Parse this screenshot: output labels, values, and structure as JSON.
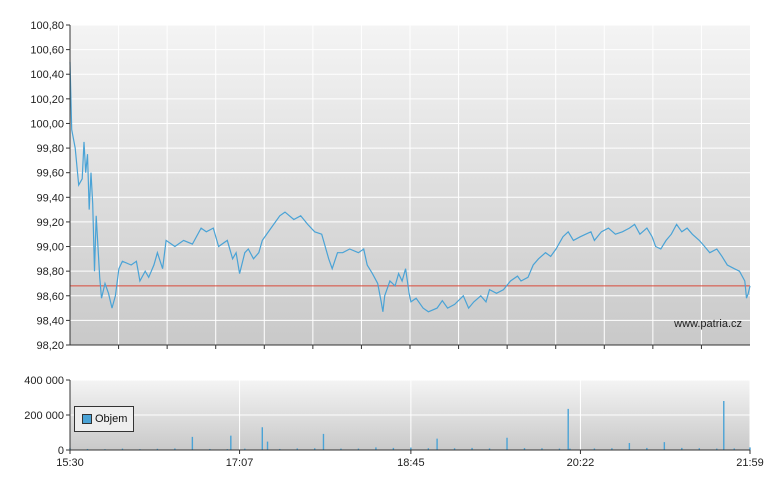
{
  "chart_data": [
    {
      "type": "line",
      "name": "price",
      "x_ticks": [
        "15:30",
        "17:07",
        "18:45",
        "20:22",
        "21:59"
      ],
      "y_ticks": [
        "100,80",
        "100,60",
        "100,40",
        "100,20",
        "100,00",
        "99,80",
        "99,60",
        "99,40",
        "99,20",
        "99,00",
        "98,80",
        "98,60",
        "98,40",
        "98,20"
      ],
      "ylim": [
        98.2,
        100.8
      ],
      "xlim": [
        "15:30",
        "21:59"
      ],
      "reference_line": 98.68,
      "grid": true,
      "watermark": "www.patria.cz",
      "series": [
        {
          "color": "#4aa3d6",
          "points": [
            [
              "15:30",
              100.5
            ],
            [
              "15:31",
              99.95
            ],
            [
              "15:33",
              99.8
            ],
            [
              "15:35",
              99.5
            ],
            [
              "15:37",
              99.55
            ],
            [
              "15:38",
              99.85
            ],
            [
              "15:39",
              99.6
            ],
            [
              "15:40",
              99.75
            ],
            [
              "15:41",
              99.3
            ],
            [
              "15:42",
              99.6
            ],
            [
              "15:43",
              99.35
            ],
            [
              "15:44",
              98.8
            ],
            [
              "15:45",
              99.25
            ],
            [
              "15:47",
              98.75
            ],
            [
              "15:48",
              98.58
            ],
            [
              "15:50",
              98.7
            ],
            [
              "15:52",
              98.62
            ],
            [
              "15:54",
              98.5
            ],
            [
              "15:56",
              98.6
            ],
            [
              "15:58",
              98.82
            ],
            [
              "16:00",
              98.88
            ],
            [
              "16:05",
              98.85
            ],
            [
              "16:08",
              98.88
            ],
            [
              "16:10",
              98.72
            ],
            [
              "16:13",
              98.8
            ],
            [
              "16:15",
              98.75
            ],
            [
              "16:18",
              98.85
            ],
            [
              "16:20",
              98.95
            ],
            [
              "16:23",
              98.82
            ],
            [
              "16:25",
              99.05
            ],
            [
              "16:30",
              99.0
            ],
            [
              "16:35",
              99.05
            ],
            [
              "16:40",
              99.02
            ],
            [
              "16:45",
              99.15
            ],
            [
              "16:48",
              99.12
            ],
            [
              "16:52",
              99.15
            ],
            [
              "16:55",
              99.0
            ],
            [
              "17:00",
              99.05
            ],
            [
              "17:03",
              98.9
            ],
            [
              "17:05",
              98.95
            ],
            [
              "17:07",
              98.78
            ],
            [
              "17:10",
              98.95
            ],
            [
              "17:12",
              98.98
            ],
            [
              "17:15",
              98.9
            ],
            [
              "17:18",
              98.95
            ],
            [
              "17:20",
              99.05
            ],
            [
              "17:25",
              99.15
            ],
            [
              "17:30",
              99.25
            ],
            [
              "17:33",
              99.28
            ],
            [
              "17:38",
              99.22
            ],
            [
              "17:42",
              99.25
            ],
            [
              "17:46",
              99.18
            ],
            [
              "17:50",
              99.12
            ],
            [
              "17:54",
              99.1
            ],
            [
              "17:58",
              98.9
            ],
            [
              "18:00",
              98.82
            ],
            [
              "18:03",
              98.95
            ],
            [
              "18:06",
              98.95
            ],
            [
              "18:10",
              98.98
            ],
            [
              "18:15",
              98.95
            ],
            [
              "18:18",
              98.98
            ],
            [
              "18:20",
              98.85
            ],
            [
              "18:23",
              98.78
            ],
            [
              "18:26",
              98.7
            ],
            [
              "18:28",
              98.55
            ],
            [
              "18:29",
              98.47
            ],
            [
              "18:30",
              98.6
            ],
            [
              "18:33",
              98.72
            ],
            [
              "18:36",
              98.68
            ],
            [
              "18:38",
              98.78
            ],
            [
              "18:40",
              98.72
            ],
            [
              "18:42",
              98.82
            ],
            [
              "18:44",
              98.62
            ],
            [
              "18:45",
              98.55
            ],
            [
              "18:48",
              98.58
            ],
            [
              "18:52",
              98.5
            ],
            [
              "18:55",
              98.47
            ],
            [
              "19:00",
              98.5
            ],
            [
              "19:03",
              98.56
            ],
            [
              "19:06",
              98.5
            ],
            [
              "19:10",
              98.53
            ],
            [
              "19:15",
              98.6
            ],
            [
              "19:18",
              98.5
            ],
            [
              "19:21",
              98.55
            ],
            [
              "19:25",
              98.6
            ],
            [
              "19:28",
              98.55
            ],
            [
              "19:30",
              98.65
            ],
            [
              "19:34",
              98.62
            ],
            [
              "19:38",
              98.65
            ],
            [
              "19:42",
              98.72
            ],
            [
              "19:46",
              98.76
            ],
            [
              "19:48",
              98.72
            ],
            [
              "19:52",
              98.75
            ],
            [
              "19:55",
              98.85
            ],
            [
              "19:58",
              98.9
            ],
            [
              "20:02",
              98.95
            ],
            [
              "20:05",
              98.92
            ],
            [
              "20:08",
              98.98
            ],
            [
              "20:12",
              99.08
            ],
            [
              "20:15",
              99.12
            ],
            [
              "20:18",
              99.05
            ],
            [
              "20:22",
              99.08
            ],
            [
              "20:25",
              99.1
            ],
            [
              "20:28",
              99.12
            ],
            [
              "20:30",
              99.05
            ],
            [
              "20:34",
              99.12
            ],
            [
              "20:38",
              99.15
            ],
            [
              "20:42",
              99.1
            ],
            [
              "20:46",
              99.12
            ],
            [
              "20:50",
              99.15
            ],
            [
              "20:53",
              99.18
            ],
            [
              "20:56",
              99.1
            ],
            [
              "21:00",
              99.15
            ],
            [
              "21:03",
              99.08
            ],
            [
              "21:05",
              99.0
            ],
            [
              "21:08",
              98.98
            ],
            [
              "21:11",
              99.05
            ],
            [
              "21:14",
              99.1
            ],
            [
              "21:17",
              99.18
            ],
            [
              "21:20",
              99.12
            ],
            [
              "21:23",
              99.15
            ],
            [
              "21:26",
              99.1
            ],
            [
              "21:30",
              99.05
            ],
            [
              "21:33",
              99.0
            ],
            [
              "21:36",
              98.95
            ],
            [
              "21:40",
              98.98
            ],
            [
              "21:43",
              98.92
            ],
            [
              "21:46",
              98.85
            ],
            [
              "21:50",
              98.82
            ],
            [
              "21:53",
              98.8
            ],
            [
              "21:56",
              98.72
            ],
            [
              "21:57",
              98.58
            ],
            [
              "21:58",
              98.62
            ],
            [
              "21:59",
              98.68
            ]
          ]
        }
      ]
    },
    {
      "type": "bar",
      "name": "volume",
      "y_ticks": [
        "400 000",
        "200 000",
        "0"
      ],
      "ylim": [
        0,
        400000
      ],
      "legend": {
        "label": "Objem",
        "position": "left",
        "color": "#4aa3d6"
      },
      "series": [
        {
          "name": "Objem",
          "color": "#4aa3d6",
          "bars": [
            [
              "15:30",
              12000
            ],
            [
              "15:40",
              6000
            ],
            [
              "15:50",
              5000
            ],
            [
              "16:00",
              8000
            ],
            [
              "16:10",
              5000
            ],
            [
              "16:20",
              7000
            ],
            [
              "16:30",
              9000
            ],
            [
              "16:40",
              75000
            ],
            [
              "16:50",
              6000
            ],
            [
              "17:00",
              5000
            ],
            [
              "17:02",
              82000
            ],
            [
              "17:10",
              8000
            ],
            [
              "17:20",
              130000
            ],
            [
              "17:23",
              48000
            ],
            [
              "17:30",
              6000
            ],
            [
              "17:40",
              9000
            ],
            [
              "17:50",
              10000
            ],
            [
              "17:55",
              92000
            ],
            [
              "18:05",
              8000
            ],
            [
              "18:15",
              8000
            ],
            [
              "18:25",
              15000
            ],
            [
              "18:35",
              12000
            ],
            [
              "18:45",
              14000
            ],
            [
              "18:55",
              10000
            ],
            [
              "19:00",
              65000
            ],
            [
              "19:10",
              10000
            ],
            [
              "19:20",
              12000
            ],
            [
              "19:30",
              9000
            ],
            [
              "19:40",
              70000
            ],
            [
              "19:50",
              11000
            ],
            [
              "20:00",
              10000
            ],
            [
              "20:10",
              8000
            ],
            [
              "20:15",
              235000
            ],
            [
              "20:16",
              8000
            ],
            [
              "20:30",
              9000
            ],
            [
              "20:40",
              10000
            ],
            [
              "20:50",
              40000
            ],
            [
              "21:00",
              12000
            ],
            [
              "21:10",
              45000
            ],
            [
              "21:20",
              12000
            ],
            [
              "21:30",
              10000
            ],
            [
              "21:40",
              8000
            ],
            [
              "21:44",
              280000
            ],
            [
              "21:50",
              9000
            ],
            [
              "21:59",
              15000
            ]
          ]
        }
      ]
    }
  ]
}
